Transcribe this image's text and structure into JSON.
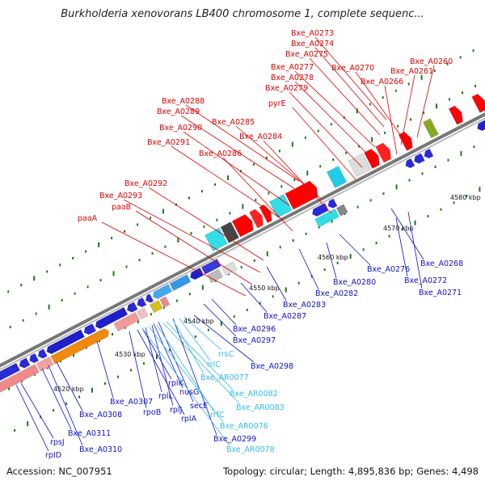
{
  "title": "Burkholderia xenovorans LB400 chromosome 1, complete sequenc...",
  "footer": {
    "accession": "Accession: NC_007951",
    "info": "Topology: circular; Length: 4,895,836 bp; Genes: 4,498"
  },
  "colors": {
    "top_label": "#e00000",
    "bottom_label": "#1010cc",
    "rna_label": "#33bbee",
    "backbone": "#888888",
    "tick": "#1a7a1a"
  },
  "kbp_labels": [
    "4520 kbp",
    "4530 kbp",
    "4540 kbp",
    "4550 kbp",
    "4560 kbp",
    "4570 kbp",
    "4580 kbp"
  ],
  "top_labels": [
    "Bxe_A0273",
    "Bxe_A0274",
    "Bxe_A0275",
    "Bxe_A0277",
    "Bxe_A0270",
    "Bxe_A0260",
    "Bxe_A0278",
    "Bxe_A0266",
    "Bxe_A0261",
    "Bxe_A0279",
    "pyrE",
    "Bxe_A0288",
    "Bxe_A0289",
    "Bxe_A0285",
    "Bxe_A0290",
    "Bxe_A0284",
    "Bxe_A0291",
    "Bxe_A0286",
    "Bxe_A0292",
    "Bxe_A0293",
    "paaB",
    "paaA"
  ],
  "bottom_labels": [
    "Bxe_A0268",
    "Bxe_A0276",
    "Bxe_A0280",
    "Bxe_A0272",
    "Bxe_A0271",
    "Bxe_A0282",
    "Bxe_A0283",
    "Bxe_A0287",
    "Bxe_A0296",
    "Bxe_A0297",
    "Bxe_A0298",
    "Bxe_A0307",
    "rpoB",
    "rplL",
    "rplJ",
    "rplK",
    "nusG",
    "secE",
    "rplA",
    "Bxe_A0308",
    "Bxe_A0311",
    "Bxe_A0310",
    "rpsJ",
    "rpID",
    "Bxe_A0299"
  ],
  "rna_labels": [
    "rrsC",
    "rrlC",
    "Bxe_AR0077",
    "Bxe_AR0082",
    "Bxe_AR0083",
    "rrfC",
    "Bxe_AR0076",
    "Bxe_AR0078"
  ]
}
